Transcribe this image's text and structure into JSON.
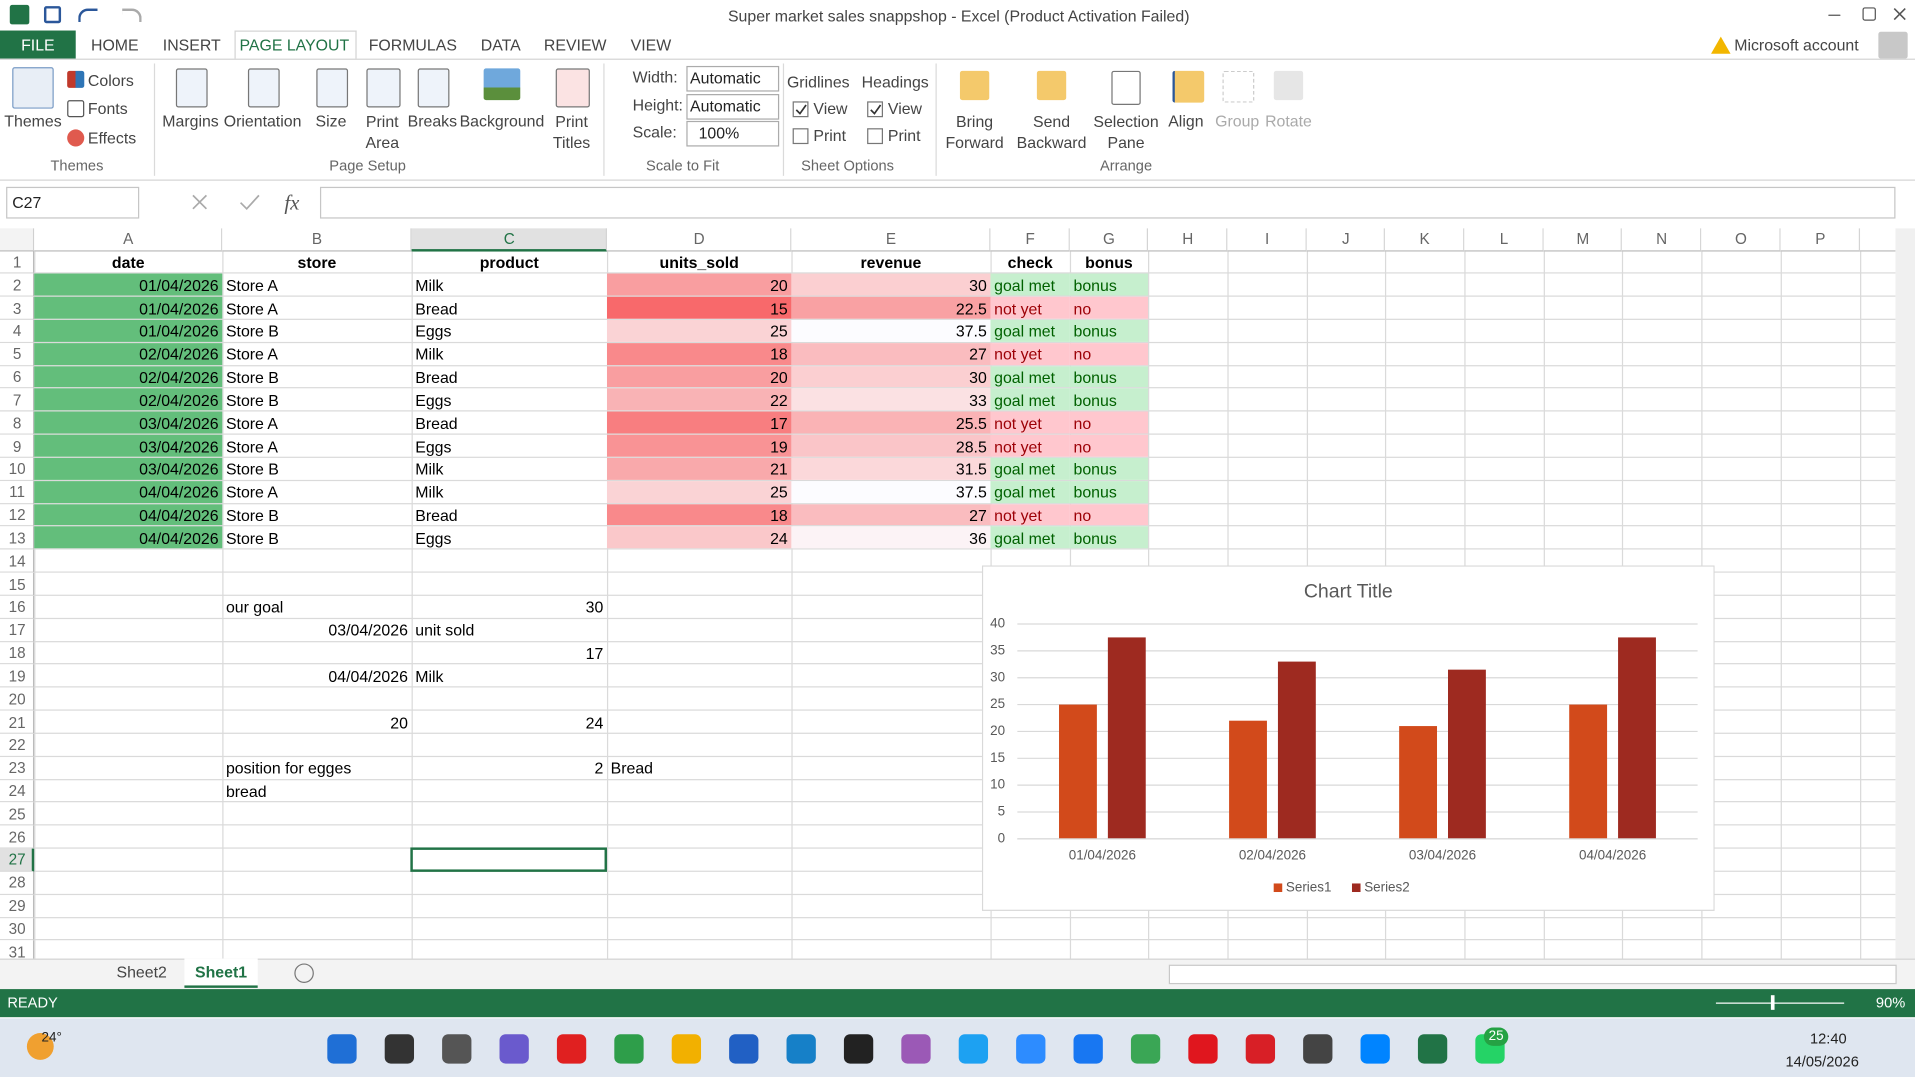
{
  "window": {
    "title": "Super market sales snappshop - Excel (Product Activation Failed)",
    "account": "Microsoft account"
  },
  "tabs": [
    "FILE",
    "HOME",
    "INSERT",
    "PAGE LAYOUT",
    "FORMULAS",
    "DATA",
    "REVIEW",
    "VIEW"
  ],
  "active_tab": 3,
  "ribbon": {
    "themes": {
      "themes": "Themes",
      "colors": "Colors",
      "fonts": "Fonts",
      "effects": "Effects",
      "label": "Themes"
    },
    "page_setup": {
      "margins": "Margins",
      "orientation": "Orientation",
      "size": "Size",
      "print_area": "Print\nArea",
      "breaks": "Breaks",
      "background": "Background",
      "print_titles": "Print\nTitles",
      "label": "Page Setup"
    },
    "scale_to_fit": {
      "width": "Width:",
      "width_value": "Automatic",
      "height": "Height:",
      "height_value": "Automatic",
      "scale": "Scale:",
      "scale_value": "100%",
      "label": "Scale to Fit"
    },
    "sheet_options": {
      "gridlines": "Gridlines",
      "gridlines_view": "View",
      "gridlines_print": "Print",
      "headings": "Headings",
      "headings_view": "View",
      "headings_print": "Print",
      "label": "Sheet Options"
    },
    "arrange": {
      "bring_forward": "Bring\nForward",
      "send_backward": "Send\nBackward",
      "selection_pane": "Selection\nPane",
      "align": "Align",
      "group": "Group",
      "rotate": "Rotate",
      "label": "Arrange"
    }
  },
  "name_box": "C27",
  "formula_label": "fx",
  "sheet": {
    "columns": [
      "A",
      "B",
      "C",
      "D",
      "E",
      "F",
      "G",
      "H",
      "I",
      "J",
      "K",
      "L",
      "M",
      "N",
      "O",
      "P"
    ],
    "header_row": 1,
    "rows": [
      {
        "number": 1,
        "cells": [
          "date",
          "store",
          "product",
          "units_sold",
          "revenue",
          "check",
          "bonus"
        ]
      },
      {
        "number": 2,
        "cells": [
          "01/04/2026",
          "Store A",
          "Milk",
          20,
          30,
          "goal met",
          "bonus"
        ]
      },
      {
        "number": 3,
        "cells": [
          "01/04/2026",
          "Store A",
          "Bread",
          15,
          22.5,
          "not yet",
          "no"
        ]
      },
      {
        "number": 4,
        "cells": [
          "01/04/2026",
          "Store B",
          "Eggs",
          25,
          37.5,
          "goal met",
          "bonus"
        ]
      },
      {
        "number": 5,
        "cells": [
          "02/04/2026",
          "Store A",
          "Milk",
          18,
          27,
          "not yet",
          "no"
        ]
      },
      {
        "number": 6,
        "cells": [
          "02/04/2026",
          "Store B",
          "Bread",
          20,
          30,
          "goal met",
          "bonus"
        ]
      },
      {
        "number": 7,
        "cells": [
          "02/04/2026",
          "Store B",
          "Eggs",
          22,
          33,
          "goal met",
          "bonus"
        ]
      },
      {
        "number": 8,
        "cells": [
          "03/04/2026",
          "Store A",
          "Bread",
          17,
          25.5,
          "not yet",
          "no"
        ]
      },
      {
        "number": 9,
        "cells": [
          "03/04/2026",
          "Store A",
          "Eggs",
          19,
          28.5,
          "not yet",
          "no"
        ]
      },
      {
        "number": 10,
        "cells": [
          "03/04/2026",
          "Store B",
          "Milk",
          21,
          31.5,
          "goal met",
          "bonus"
        ]
      },
      {
        "number": 11,
        "cells": [
          "04/04/2026",
          "Store A",
          "Milk",
          25,
          37.5,
          "goal met",
          "bonus"
        ]
      },
      {
        "number": 12,
        "cells": [
          "04/04/2026",
          "Store B",
          "Bread",
          18,
          27,
          "not yet",
          "no"
        ]
      },
      {
        "number": 13,
        "cells": [
          "04/04/2026",
          "Store B",
          "Eggs",
          24,
          36,
          "goal met",
          "bonus"
        ]
      },
      {
        "number": 14
      },
      {
        "number": 15
      },
      {
        "number": 16,
        "cells": [
          null,
          "our goal",
          30
        ]
      },
      {
        "number": 17,
        "cells": [
          null,
          "03/04/2026",
          "unit sold"
        ]
      },
      {
        "number": 18,
        "cells": [
          null,
          null,
          17
        ]
      },
      {
        "number": 19,
        "cells": [
          null,
          "04/04/2026",
          "Milk"
        ]
      },
      {
        "number": 20
      },
      {
        "number": 21,
        "cells": [
          null,
          20,
          24
        ]
      },
      {
        "number": 22
      },
      {
        "number": 23,
        "cells": [
          null,
          "position for egges",
          2,
          "Bread"
        ]
      },
      {
        "number": 24,
        "cells": [
          null,
          "bread"
        ]
      },
      {
        "number": 25
      },
      {
        "number": 26
      },
      {
        "number": 27
      },
      {
        "number": 28
      },
      {
        "number": 29
      },
      {
        "number": 30
      },
      {
        "number": 31
      }
    ],
    "formats": [
      {
        "columns": [
          "A"
        ],
        "rows": [
          2,
          13
        ],
        "fill": "#63be7b"
      },
      {
        "columns": [
          "D"
        ],
        "rows": [
          2,
          13
        ],
        "scale": [
          "#f8696b",
          "#fad3d5"
        ]
      },
      {
        "columns": [
          "E"
        ],
        "rows": [
          2,
          13
        ],
        "scale": [
          "#f9a1a3",
          "#fcfcff"
        ]
      },
      {
        "columns": [
          "F",
          "G"
        ],
        "rows": [
          2,
          13
        ],
        "compare": "E",
        "threshold": "C16",
        "pass": {
          "fill": "#c6efce",
          "text": "#006100"
        },
        "fail": {
          "fill": "#ffc7ce",
          "text": "#9c0006"
        }
      }
    ]
  },
  "chart_data": {
    "type": "bar",
    "title": "Chart Title",
    "categories": [
      "01/04/2026",
      "02/04/2026",
      "03/04/2026",
      "04/04/2026"
    ],
    "series": [
      {
        "name": "Series1",
        "color": "#d24a1b",
        "values": [
          25,
          22,
          21,
          25
        ]
      },
      {
        "name": "Series2",
        "color": "#9e2a20",
        "values": [
          37.5,
          33,
          31.5,
          37.5
        ]
      }
    ],
    "ylim": [
      0,
      40
    ],
    "yticks": [
      0,
      5,
      10,
      15,
      20,
      25,
      30,
      35,
      40
    ],
    "grid": true,
    "legend": "bottom"
  },
  "sheet_tabs": [
    "Sheet2",
    "Sheet1"
  ],
  "active_sheet": 1,
  "status": {
    "mode": "READY",
    "zoom": "90%"
  },
  "taskbar": {
    "weather": "24°",
    "time": "12:40",
    "date": "14/05/2026",
    "whatsapp_badge": 25
  }
}
